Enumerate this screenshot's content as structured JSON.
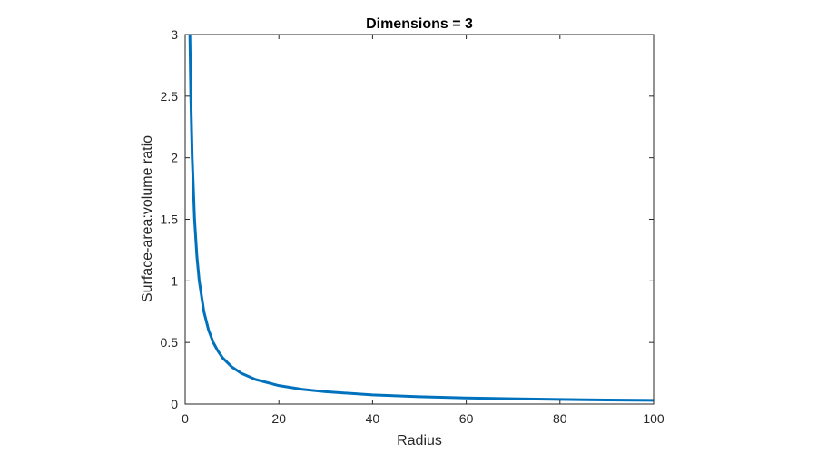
{
  "chart_data": {
    "type": "line",
    "title": "Dimensions = 3",
    "xlabel": "Radius",
    "ylabel": "Surface-area:volume ratio",
    "xlim": [
      0,
      100
    ],
    "ylim": [
      0,
      3
    ],
    "xticks": [
      0,
      20,
      40,
      60,
      80,
      100
    ],
    "yticks": [
      0,
      0.5,
      1,
      1.5,
      2,
      2.5,
      3
    ],
    "xtick_labels": [
      "0",
      "20",
      "40",
      "60",
      "80",
      "100"
    ],
    "ytick_labels": [
      "0",
      "0.5",
      "1",
      "1.5",
      "2",
      "2.5",
      "3"
    ],
    "grid": false,
    "line_color": "#0072BD",
    "series": [
      {
        "x": [
          1,
          1.2,
          1.5,
          2,
          2.5,
          3,
          4,
          5,
          6,
          7,
          8,
          10,
          12,
          15,
          20,
          25,
          30,
          40,
          50,
          60,
          70,
          80,
          90,
          100
        ],
        "y": [
          3,
          2.5,
          2,
          1.5,
          1.2,
          1,
          0.75,
          0.6,
          0.5,
          0.43,
          0.375,
          0.3,
          0.25,
          0.2,
          0.15,
          0.12,
          0.1,
          0.075,
          0.06,
          0.05,
          0.043,
          0.0375,
          0.033,
          0.03
        ]
      }
    ]
  }
}
